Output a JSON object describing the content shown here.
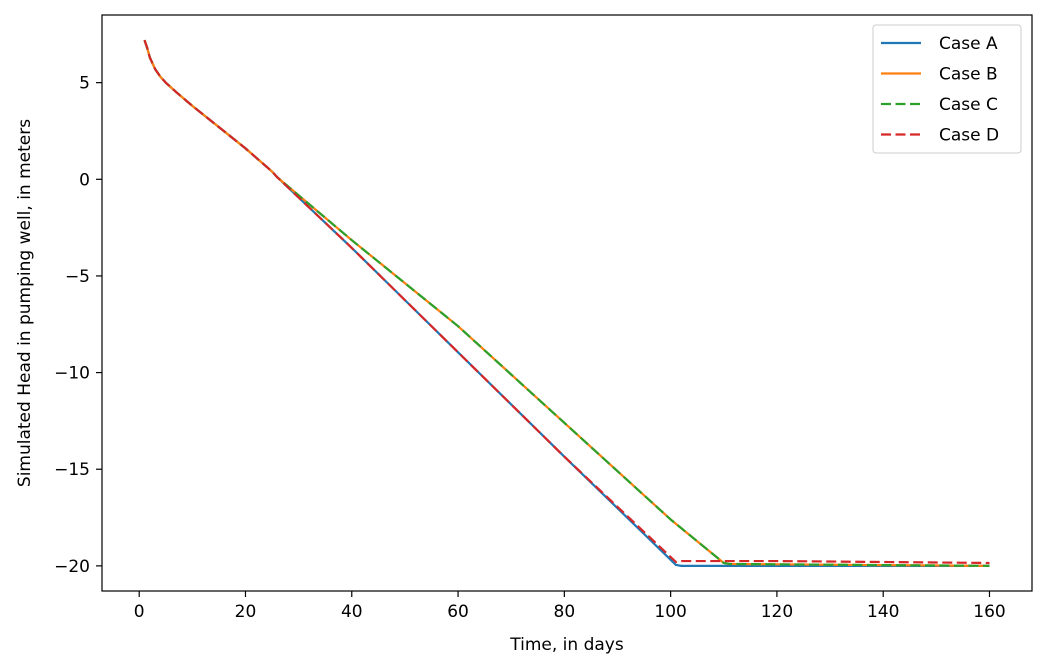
{
  "chart_data": {
    "type": "line",
    "title": "",
    "xlabel": "Time, in days",
    "ylabel": "Simulated Head in pumping well, in meters",
    "xlim": [
      -7,
      168
    ],
    "ylim": [
      -21.3,
      8.5
    ],
    "xticks": [
      0,
      20,
      40,
      60,
      80,
      100,
      120,
      140,
      160
    ],
    "yticks": [
      5,
      0,
      -5,
      -10,
      -15,
      -20
    ],
    "grid": false,
    "legend_position": "top-right",
    "series": [
      {
        "name": "Case A",
        "color": "#1f77b4",
        "dash": "solid",
        "x": [
          1,
          1.5,
          2,
          3,
          4,
          5,
          7,
          10,
          15,
          20,
          25,
          26,
          40,
          60,
          80,
          101,
          102,
          120,
          140,
          160
        ],
        "y": [
          7.2,
          6.8,
          6.3,
          5.7,
          5.3,
          5.0,
          4.5,
          3.8,
          2.7,
          1.6,
          0.4,
          0.1,
          -3.55,
          -8.95,
          -14.35,
          -19.95,
          -20.0,
          -20.0,
          -20.0,
          -20.0
        ]
      },
      {
        "name": "Case B",
        "color": "#ff7f0e",
        "dash": "solid",
        "x": [
          1,
          1.5,
          2,
          3,
          4,
          5,
          7,
          10,
          15,
          20,
          25,
          26,
          40,
          60,
          80,
          100,
          110,
          111,
          120,
          140,
          160
        ],
        "y": [
          7.2,
          6.8,
          6.3,
          5.7,
          5.3,
          5.0,
          4.5,
          3.8,
          2.7,
          1.6,
          0.4,
          0.1,
          -3.15,
          -7.6,
          -12.6,
          -17.6,
          -19.85,
          -19.9,
          -19.92,
          -19.96,
          -20.0
        ]
      },
      {
        "name": "Case C",
        "color": "#2ca02c",
        "dash": "dashed",
        "x": [
          1,
          1.5,
          2,
          3,
          4,
          5,
          7,
          10,
          15,
          20,
          25,
          26,
          40,
          60,
          80,
          100,
          110,
          111,
          120,
          140,
          160
        ],
        "y": [
          7.2,
          6.8,
          6.3,
          5.7,
          5.3,
          5.0,
          4.5,
          3.8,
          2.7,
          1.6,
          0.4,
          0.1,
          -3.15,
          -7.6,
          -12.6,
          -17.6,
          -19.85,
          -19.9,
          -19.92,
          -19.96,
          -20.0
        ]
      },
      {
        "name": "Case D",
        "color": "#d62728",
        "dash": "dashed",
        "x": [
          1,
          1.5,
          2,
          3,
          4,
          5,
          7,
          10,
          15,
          20,
          25,
          26,
          40,
          60,
          80,
          101,
          102,
          120,
          140,
          160
        ],
        "y": [
          7.2,
          6.8,
          6.3,
          5.7,
          5.3,
          5.0,
          4.5,
          3.8,
          2.7,
          1.6,
          0.4,
          0.1,
          -3.55,
          -8.95,
          -14.35,
          -19.8,
          -19.75,
          -19.75,
          -19.8,
          -19.85
        ]
      }
    ]
  }
}
